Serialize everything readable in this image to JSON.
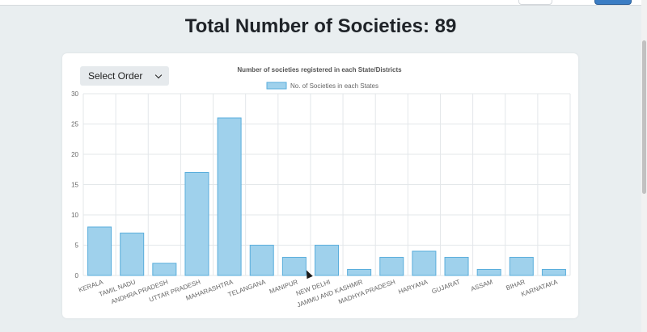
{
  "page": {
    "title": "Total Number of Societies: 89"
  },
  "controls": {
    "select_order_label": "Select Order"
  },
  "colors": {
    "bar_fill": "#9fd1ec",
    "bar_stroke": "#5aaedc",
    "grid": "#e3e7ea"
  },
  "chart_data": {
    "type": "bar",
    "title": "Number of societies registered in each State/Districts",
    "legend": "top",
    "grid": true,
    "ylim": [
      0,
      30
    ],
    "yticks": [
      0,
      5,
      10,
      15,
      20,
      25,
      30
    ],
    "categories": [
      "KERALA",
      "TAMIL NADU",
      "ANDHRA PRADESH",
      "UTTAR PRADESH",
      "MAHARASHTRA",
      "TELANGANA",
      "MANIPUR",
      "NEW DELHI",
      "JAMMU AND KASHMIR",
      "MADHYA PRADESH",
      "HARYANA",
      "GUJARAT",
      "ASSAM",
      "BIHAR",
      "KARNATAKA"
    ],
    "series": [
      {
        "name": "No. of Societies in each States",
        "values": [
          8,
          7,
          2,
          17,
          26,
          5,
          3,
          5,
          1,
          3,
          4,
          3,
          1,
          3,
          1
        ]
      }
    ]
  }
}
